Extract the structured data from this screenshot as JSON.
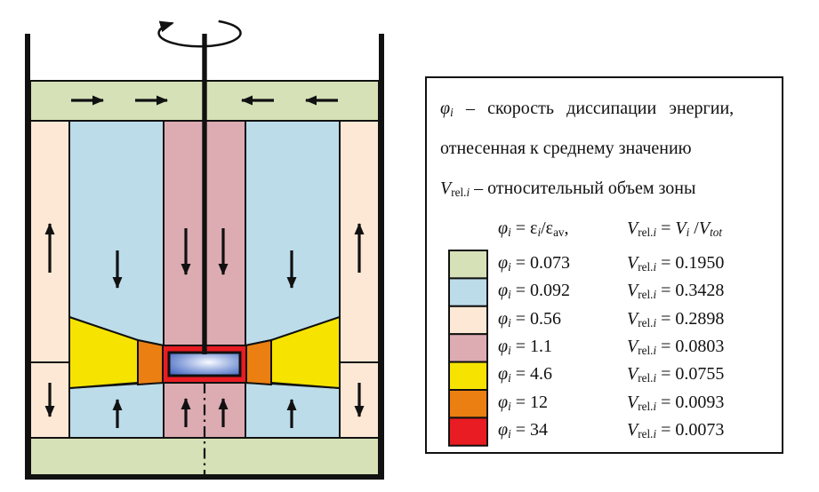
{
  "colors": {
    "green": "#d6e1b8",
    "blue": "#bcdcea",
    "cream": "#fce8d5",
    "pink": "#dcacb2",
    "yellow": "#f6e400",
    "orange": "#eb7f12",
    "red": "#e81c22",
    "impeller_center": "#f8faff",
    "impeller_mid": "#93aade",
    "impeller_edge": "#3f62bd"
  },
  "legend": {
    "line1": [
      {
        "t": "φ",
        "s": "it"
      },
      {
        "t": "i",
        "s": "isub"
      },
      {
        "t": " – скорость диссипации энергии,",
        "s": ""
      }
    ],
    "line2": "отнесенная к среднему значению",
    "line3": [
      {
        "t": "V",
        "s": "it"
      },
      {
        "t": "rel.",
        "s": "sub"
      },
      {
        "t": "i",
        "s": "isub"
      },
      {
        "t": " – относительный объем зоны",
        "s": ""
      }
    ],
    "formula_phi": [
      {
        "t": "φ",
        "s": "it"
      },
      {
        "t": "i",
        "s": "isub"
      },
      {
        "t": " = ",
        "s": ""
      },
      {
        "t": "ε",
        "s": ""
      },
      {
        "t": "i",
        "s": "isub"
      },
      {
        "t": "/",
        "s": ""
      },
      {
        "t": "ε",
        "s": ""
      },
      {
        "t": "av",
        "s": "sub"
      },
      {
        "t": ",",
        "s": ""
      }
    ],
    "formula_v": [
      {
        "t": "V",
        "s": "it"
      },
      {
        "t": "rel.",
        "s": "sub"
      },
      {
        "t": "i",
        "s": "isub"
      },
      {
        "t": " = ",
        "s": ""
      },
      {
        "t": "V",
        "s": "it"
      },
      {
        "t": "i",
        "s": "isub"
      },
      {
        "t": " /",
        "s": ""
      },
      {
        "t": "V",
        "s": "it"
      },
      {
        "t": "tot",
        "s": "isub"
      }
    ],
    "row_phi_symbol": [
      {
        "t": "φ",
        "s": "it"
      },
      {
        "t": "i",
        "s": "isub"
      },
      {
        "t": " = ",
        "s": ""
      }
    ],
    "row_v_symbol": [
      {
        "t": "V",
        "s": "it"
      },
      {
        "t": "rel.",
        "s": "sub"
      },
      {
        "t": "i",
        "s": "isub"
      },
      {
        "t": " = ",
        "s": ""
      }
    ],
    "rows": [
      {
        "color": "green",
        "phi": "0.073",
        "vrel": "0.1950"
      },
      {
        "color": "blue",
        "phi": "0.092",
        "vrel": "0.3428"
      },
      {
        "color": "cream",
        "phi": "0.56",
        "vrel": "0.2898"
      },
      {
        "color": "pink",
        "phi": "1.1",
        "vrel": "0.0803"
      },
      {
        "color": "yellow",
        "phi": "4.6",
        "vrel": "0.0755"
      },
      {
        "color": "orange",
        "phi": "12",
        "vrel": "0.0093"
      },
      {
        "color": "red",
        "phi": "34",
        "vrel": "0.0073"
      }
    ]
  }
}
